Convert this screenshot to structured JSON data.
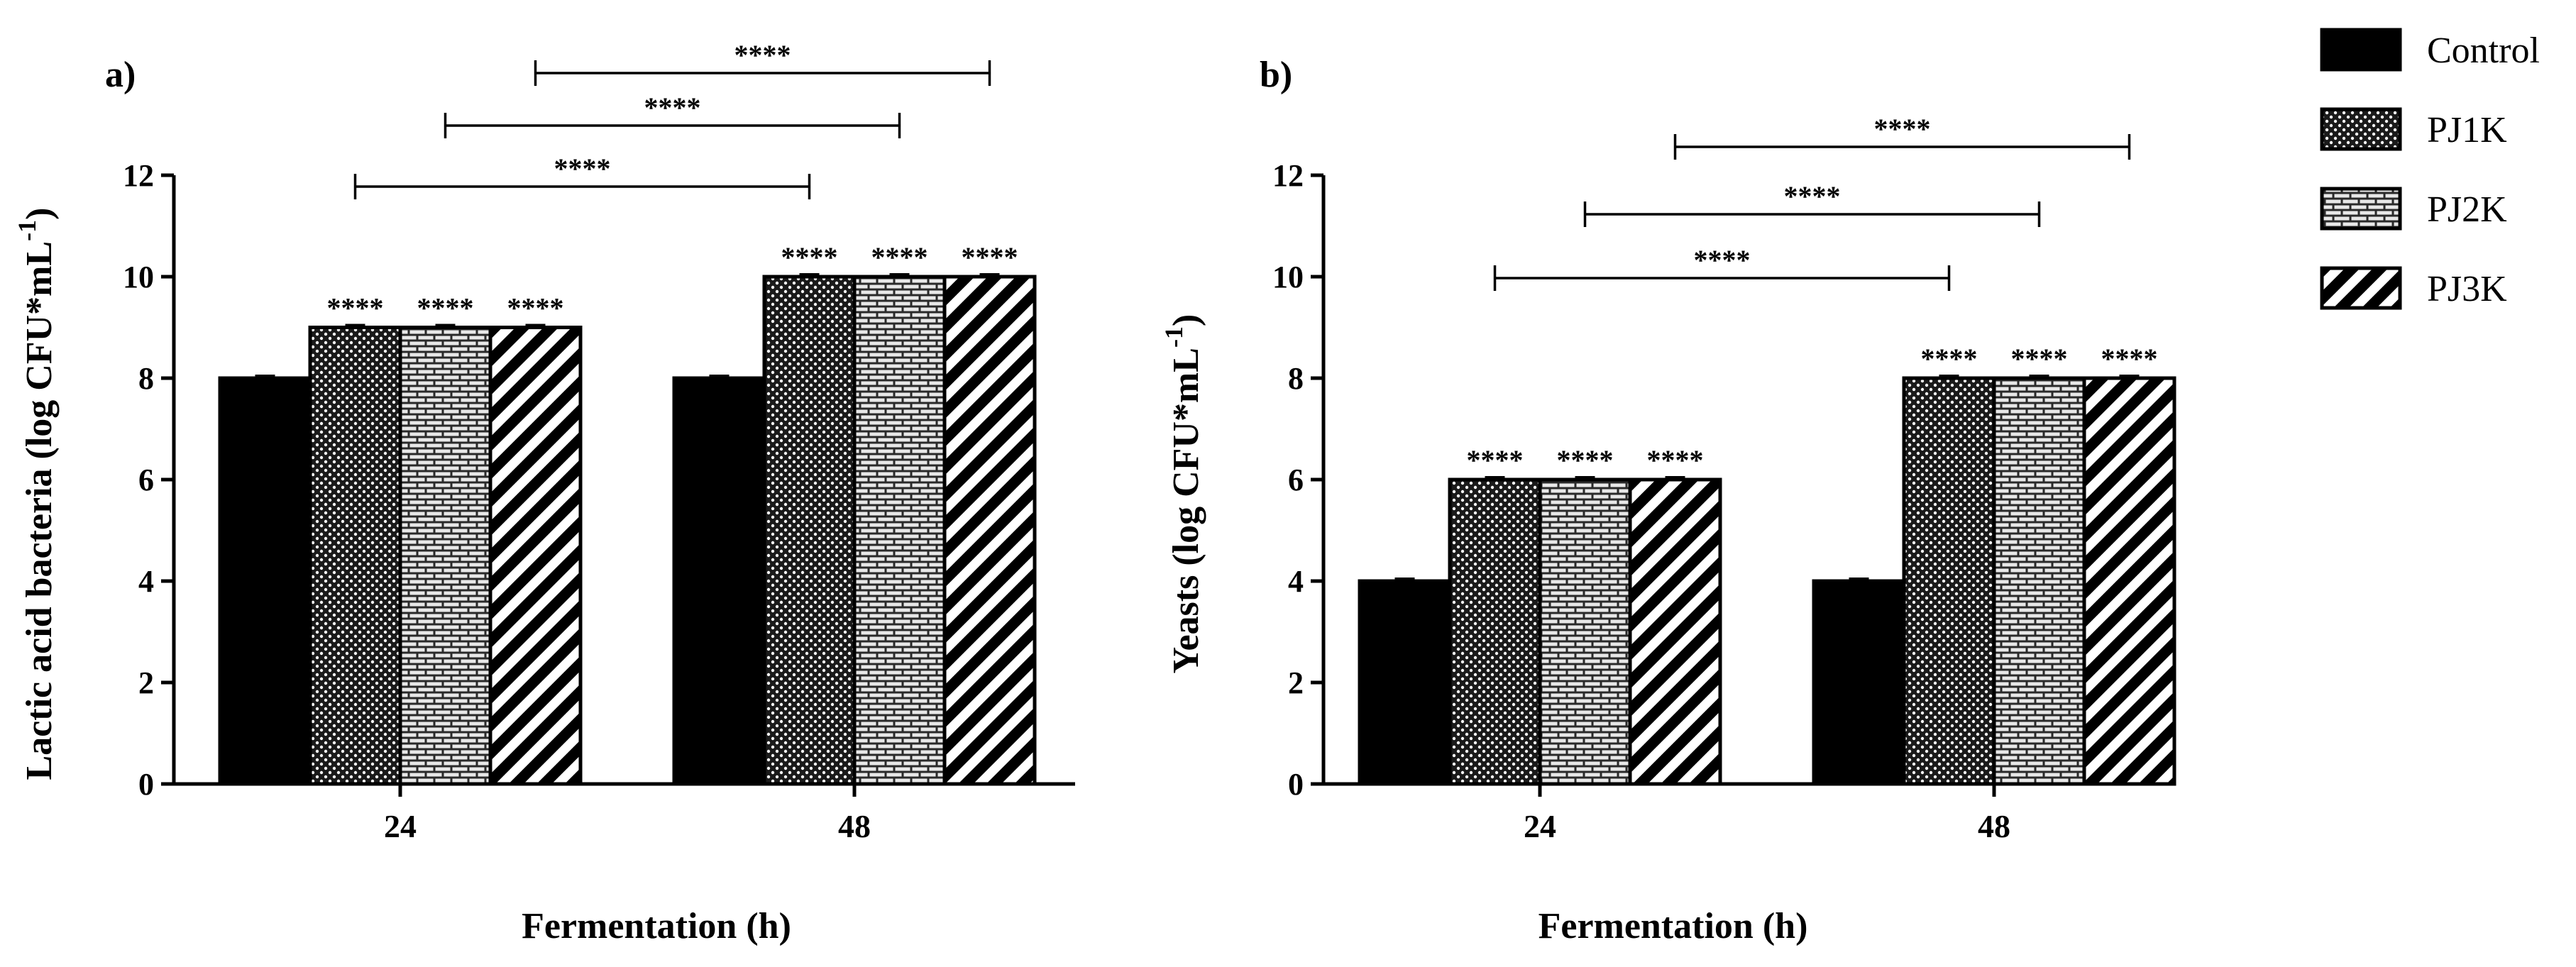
{
  "legend": [
    {
      "name": "Control",
      "pattern": "solid"
    },
    {
      "name": "PJ1K",
      "pattern": "dots"
    },
    {
      "name": "PJ2K",
      "pattern": "brick"
    },
    {
      "name": "PJ3K",
      "pattern": "diagonal"
    }
  ],
  "chart_data": [
    {
      "type": "bar",
      "panel_label": "a)",
      "title": "",
      "xlabel": "Fermentation  (h)",
      "ylabel_main": "Lactic acid bacteria (log CFU*mL",
      "ylabel_sup": "-1",
      "ylabel_close": ")",
      "categories": [
        "24",
        "48"
      ],
      "ylim": [
        0,
        12
      ],
      "yticks": [
        "0",
        "2",
        "4",
        "6",
        "8",
        "10",
        "12"
      ],
      "series": [
        {
          "name": "Control",
          "values": [
            8,
            8
          ]
        },
        {
          "name": "PJ1K",
          "values": [
            9,
            10
          ]
        },
        {
          "name": "PJ2K",
          "values": [
            9,
            10
          ]
        },
        {
          "name": "PJ3K",
          "values": [
            9,
            10
          ]
        }
      ],
      "bar_annotations": [
        "",
        "****",
        "****",
        "****"
      ],
      "brackets": [
        {
          "label": "****",
          "from": {
            "category": 0,
            "series": 1
          },
          "to": {
            "category": 1,
            "series": 1
          }
        },
        {
          "label": "****",
          "from": {
            "category": 0,
            "series": 2
          },
          "to": {
            "category": 1,
            "series": 2
          }
        },
        {
          "label": "****",
          "from": {
            "category": 0,
            "series": 3
          },
          "to": {
            "category": 1,
            "series": 3
          }
        }
      ]
    },
    {
      "type": "bar",
      "panel_label": "b)",
      "title": "",
      "xlabel": "Fermentation  (h)",
      "ylabel_main": "Yeasts (log CFU*mL",
      "ylabel_sup": "-1",
      "ylabel_close": ")",
      "categories": [
        "24",
        "48"
      ],
      "ylim": [
        0,
        12
      ],
      "yticks": [
        "0",
        "2",
        "4",
        "6",
        "8",
        "10",
        "12"
      ],
      "series": [
        {
          "name": "Control",
          "values": [
            4,
            4
          ]
        },
        {
          "name": "PJ1K",
          "values": [
            6,
            8
          ]
        },
        {
          "name": "PJ2K",
          "values": [
            6,
            8
          ]
        },
        {
          "name": "PJ3K",
          "values": [
            6,
            8
          ]
        }
      ],
      "bar_annotations": [
        "",
        "****",
        "****",
        "****"
      ],
      "brackets": [
        {
          "label": "****",
          "from": {
            "category": 0,
            "series": 1
          },
          "to": {
            "category": 1,
            "series": 1
          }
        },
        {
          "label": "****",
          "from": {
            "category": 0,
            "series": 2
          },
          "to": {
            "category": 1,
            "series": 2
          }
        },
        {
          "label": "****",
          "from": {
            "category": 0,
            "series": 3
          },
          "to": {
            "category": 1,
            "series": 3
          }
        }
      ]
    }
  ]
}
